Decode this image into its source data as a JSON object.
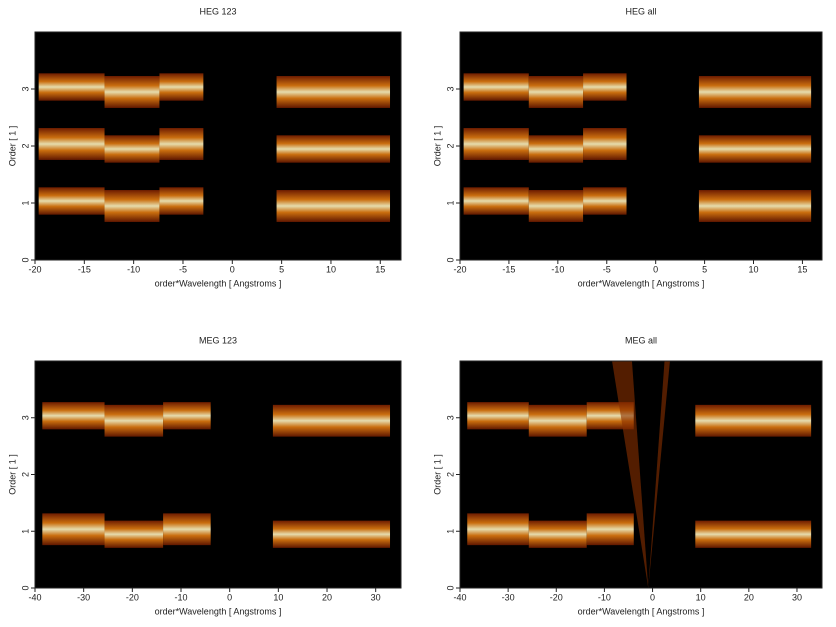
{
  "chart_data": [
    {
      "type": "image",
      "title": "HEG 123",
      "xlabel": "order*Wavelength [ Angstroms ]",
      "ylabel": "Order [ 1 ]",
      "xlim": [
        -20,
        17.1
      ],
      "ylim": [
        0,
        4
      ],
      "xticks": [
        -20,
        -15,
        -10,
        -5,
        0,
        5,
        10,
        15
      ],
      "yticks": [
        0,
        1,
        2,
        3
      ]
    },
    {
      "type": "image",
      "title": "HEG all",
      "xlabel": "order*Wavelength [ Angstroms ]",
      "ylabel": "Order [ 1 ]",
      "xlim": [
        -20,
        17
      ],
      "ylim": [
        0,
        4
      ],
      "xticks": [
        -20,
        -15,
        -10,
        -5,
        0,
        5,
        10,
        15
      ],
      "yticks": [
        0,
        1,
        2,
        3
      ]
    },
    {
      "type": "image",
      "title": "MEG 123",
      "xlabel": "order*Wavelength [ Angstroms ]",
      "ylabel": "Order [ 1 ]",
      "xlim": [
        -40,
        35.2
      ],
      "ylim": [
        0,
        4
      ],
      "xticks": [
        -40,
        -30,
        -20,
        -10,
        0,
        10,
        20,
        30
      ],
      "yticks": [
        0,
        1,
        2,
        3
      ]
    },
    {
      "type": "image",
      "title": "MEG all",
      "xlabel": "order*Wavelength [ Angstroms ]",
      "ylabel": "Order [ 1 ]",
      "xlim": [
        -40,
        35.2
      ],
      "ylim": [
        0,
        4
      ],
      "xticks": [
        -40,
        -30,
        -20,
        -10,
        0,
        10,
        20,
        30
      ],
      "yticks": [
        0,
        1,
        2,
        3
      ]
    }
  ]
}
